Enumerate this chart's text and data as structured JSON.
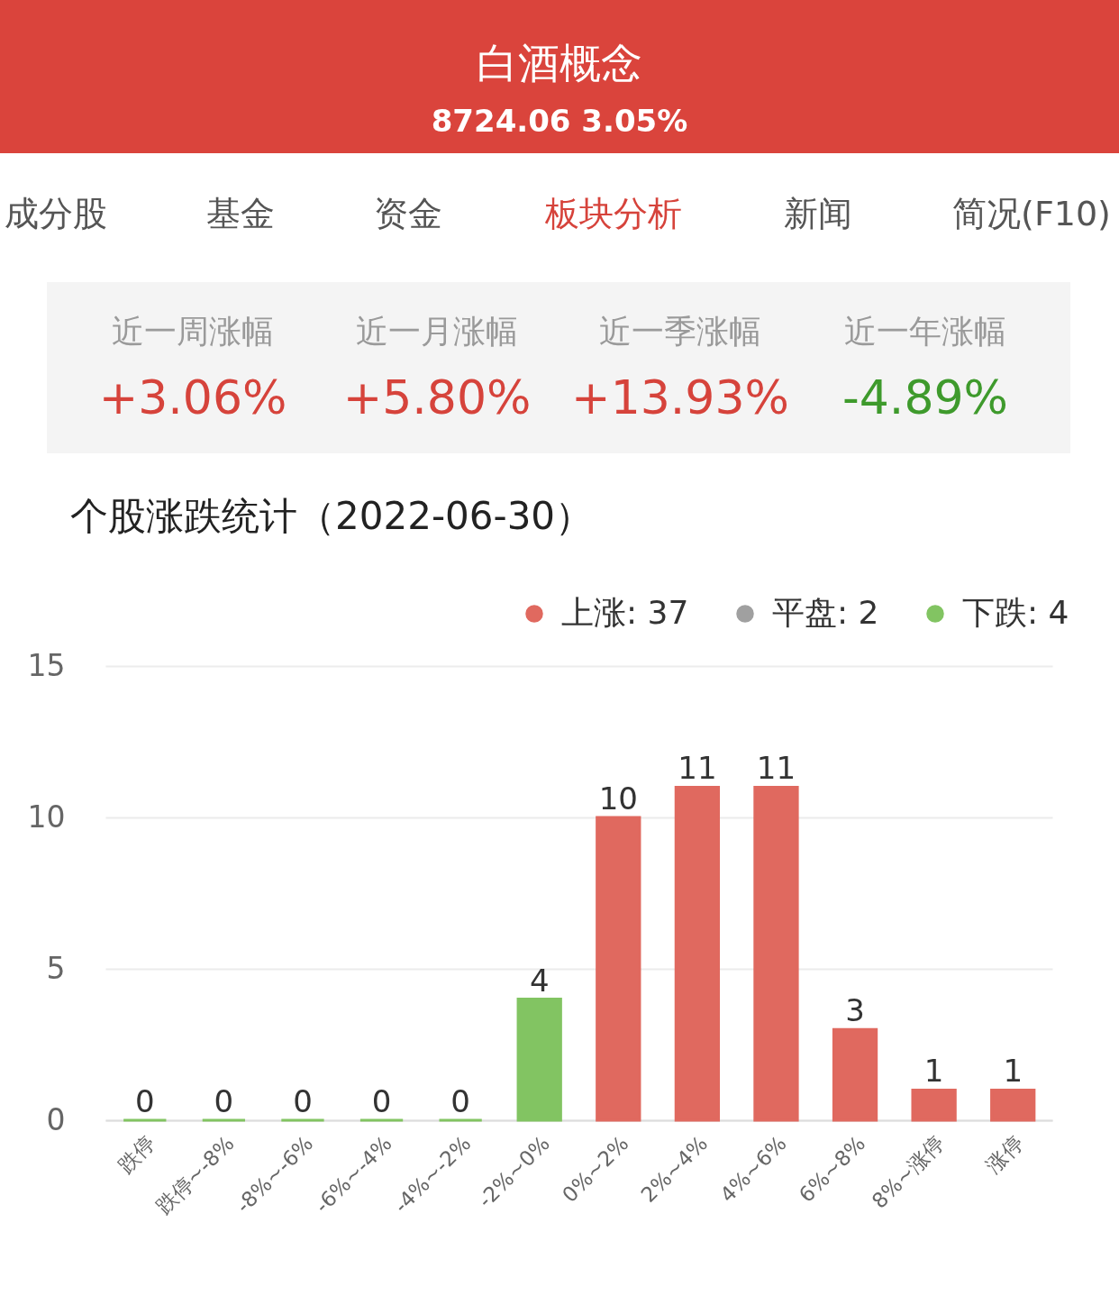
{
  "chart_data": [
    {
      "type": "other",
      "title": "白酒概念",
      "subtitle": "8724.06 3.05%",
      "annotations": [
        "成分股",
        "基金",
        "资金",
        "板块分析",
        "新闻",
        "简况(F10)",
        "近一周涨幅",
        "近一月涨幅",
        "近一季涨幅",
        "近一年涨幅",
        "+3.06%",
        "+5.80%",
        "+13.93%",
        "-4.89%"
      ]
    },
    {
      "type": "bar",
      "title": "个股涨跌统计（2022-06-30）",
      "categories": [
        "跌停",
        "跌停~-8%",
        "-8%~-6%",
        "-6%~-4%",
        "-4%~-2%",
        "-2%~0%",
        "0%~2%",
        "2%~4%",
        "4%~6%",
        "6%~8%",
        "8%~涨停",
        "涨停"
      ],
      "series": [
        {
          "name": "上涨: 37",
          "color": "#e0695f",
          "values": [
            null,
            null,
            null,
            null,
            null,
            null,
            10,
            11,
            11,
            3,
            1,
            1
          ]
        },
        {
          "name": "平盘: 2",
          "color": "#a0a0a0",
          "values": [
            null,
            null,
            null,
            null,
            null,
            null,
            null,
            null,
            null,
            null,
            null,
            null
          ]
        },
        {
          "name": "下跌: 4",
          "color": "#82c462",
          "values": [
            0,
            0,
            0,
            0,
            0,
            4,
            null,
            null,
            null,
            null,
            null,
            null
          ]
        }
      ],
      "stacked": true,
      "ylim": [
        0,
        15
      ],
      "yticks": [
        0,
        5,
        10,
        15
      ],
      "grid": "y",
      "legend": "top right",
      "data_labels": true
    }
  ]
}
